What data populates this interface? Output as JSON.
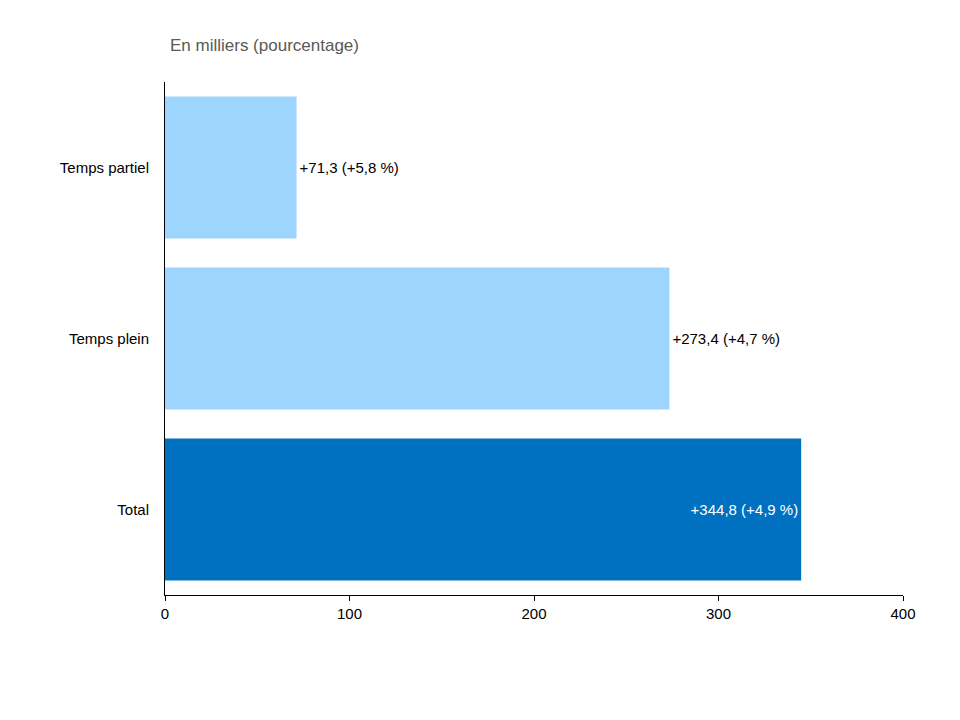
{
  "chart_data": {
    "type": "bar",
    "title": "En milliers (pourcentage)",
    "orientation": "horizontal",
    "categories": [
      "Temps partiel",
      "Temps plein",
      "Total"
    ],
    "values": [
      71.3,
      273.4,
      344.8
    ],
    "value_labels": [
      "+71,3 (+5,8 %)",
      "+273,4 (+4,7 %)",
      "+344,8 (+4,9 %)"
    ],
    "colors": [
      "#9dd5ff",
      "#9dd5ff",
      "#0070c0"
    ],
    "data_labels": true,
    "xlim": [
      0,
      400
    ],
    "xticks": [
      0,
      100,
      200,
      300,
      400
    ],
    "grid": false
  }
}
